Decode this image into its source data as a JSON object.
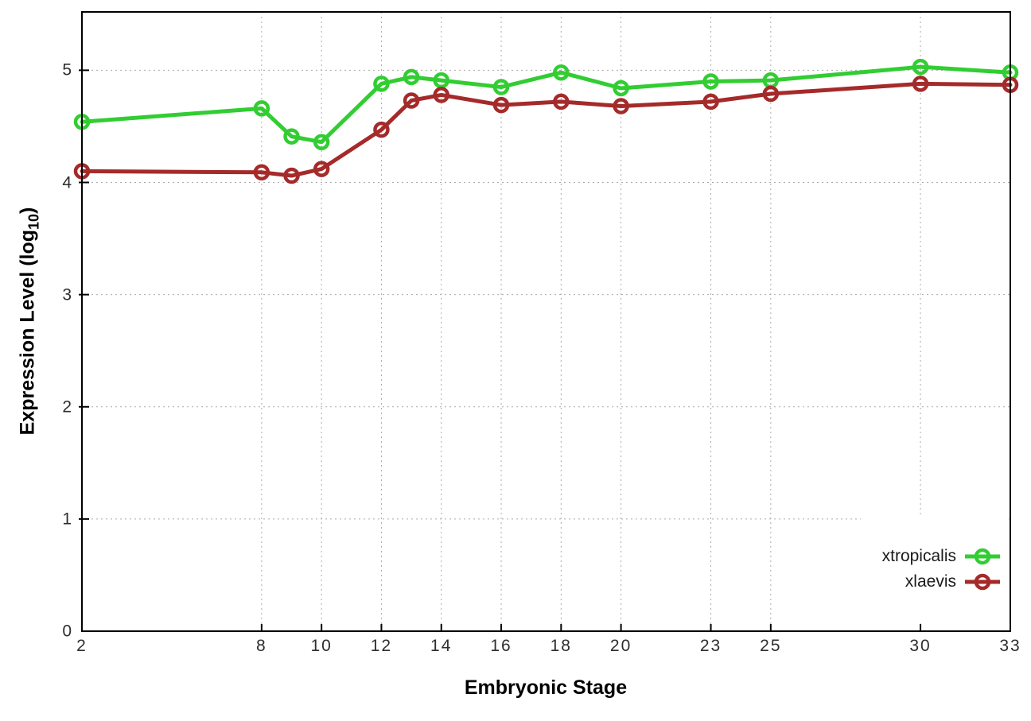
{
  "chart_data": {
    "type": "line",
    "title": "",
    "xlabel": "Embryonic Stage",
    "ylabel": "Expression Level (log10)",
    "ylabel_parts": {
      "pre": "Expression Level (log",
      "sub": "10",
      "post": ")"
    },
    "x": [
      2,
      8,
      9,
      10,
      12,
      13,
      14,
      16,
      18,
      20,
      23,
      25,
      30,
      33
    ],
    "xlim": [
      2,
      33
    ],
    "ylim": [
      0,
      5.52
    ],
    "xticks": [
      "2",
      "8",
      "10",
      "12",
      "14",
      "16",
      "18",
      "20",
      "23",
      "25",
      "30",
      "33"
    ],
    "xtick_values": [
      2,
      8,
      10,
      12,
      14,
      16,
      18,
      20,
      23,
      25,
      30,
      33
    ],
    "yticks": [
      "0",
      "1",
      "2",
      "3",
      "4",
      "5"
    ],
    "ytick_values": [
      0,
      1,
      2,
      3,
      4,
      5
    ],
    "grid": true,
    "legend_position": "inside-bottom-right",
    "marker": "open-circle",
    "colors": {
      "frame": "#000000",
      "grid": "#ababab",
      "tick_text": "#2e2e2e"
    },
    "series": [
      {
        "name": "xtropicalis",
        "color": "#32CD32",
        "values": [
          4.54,
          4.66,
          4.41,
          4.36,
          4.88,
          4.94,
          4.91,
          4.85,
          4.98,
          4.84,
          4.9,
          4.91,
          5.03,
          4.98
        ]
      },
      {
        "name": "xlaevis",
        "color": "#A52A2A",
        "values": [
          4.1,
          4.09,
          4.06,
          4.12,
          4.47,
          4.73,
          4.78,
          4.69,
          4.72,
          4.68,
          4.72,
          4.79,
          4.88,
          4.87
        ]
      }
    ]
  }
}
